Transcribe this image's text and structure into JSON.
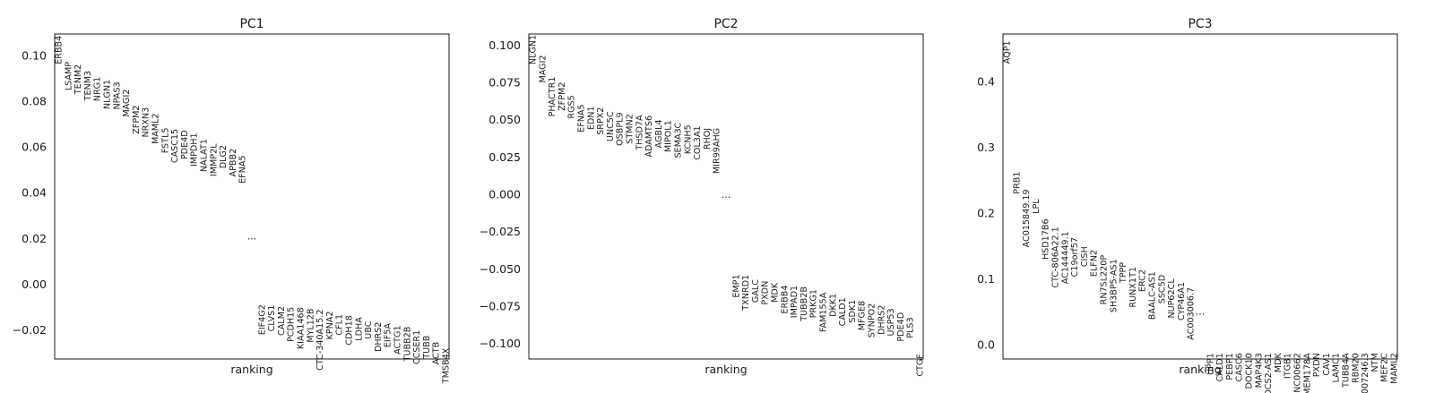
{
  "chart_data": [
    {
      "type": "scatter",
      "title": "PC1",
      "xlabel": "ranking",
      "ylabel": "",
      "ylim": [
        -0.0327,
        0.1093
      ],
      "yticks": [
        0.1,
        0.08,
        0.06,
        0.04,
        0.02,
        0.0,
        -0.02
      ],
      "ytick_labels": [
        "0.10",
        "0.08",
        "0.06",
        "0.04",
        "0.02",
        "0.00",
        "−0.02"
      ],
      "ellipsis": "...",
      "ellipsis_y": 0.0195,
      "top_genes": [
        {
          "name": "ERBB4",
          "value": 0.1086
        },
        {
          "name": "LSAMP",
          "value": 0.0972
        },
        {
          "name": "TENM2",
          "value": 0.0961
        },
        {
          "name": "TENM3",
          "value": 0.0933
        },
        {
          "name": "NRG1",
          "value": 0.0906
        },
        {
          "name": "NLGN1",
          "value": 0.0894
        },
        {
          "name": "NPAS3",
          "value": 0.0884
        },
        {
          "name": "MAGI2",
          "value": 0.0852
        },
        {
          "name": "ZFPM2",
          "value": 0.0782
        },
        {
          "name": "NRXN3",
          "value": 0.0773
        },
        {
          "name": "MAML2",
          "value": 0.0747
        },
        {
          "name": "FSTL5",
          "value": 0.0684
        },
        {
          "name": "CASC15",
          "value": 0.0679
        },
        {
          "name": "PDE4D",
          "value": 0.0673
        },
        {
          "name": "IMPDH1",
          "value": 0.0661
        },
        {
          "name": "NALAT1",
          "value": 0.0635
        },
        {
          "name": "IMMP2L",
          "value": 0.0614
        },
        {
          "name": "DLG2",
          "value": 0.0608
        },
        {
          "name": "APBB2",
          "value": 0.0593
        },
        {
          "name": "EFNA5",
          "value": 0.0563
        }
      ],
      "bottom_genes": [
        {
          "name": "EIF4G2",
          "value": -0.0089
        },
        {
          "name": "CLVS1",
          "value": -0.0091
        },
        {
          "name": "CALM2",
          "value": -0.0096
        },
        {
          "name": "PCDH15",
          "value": -0.0099
        },
        {
          "name": "KIAA1468",
          "value": -0.0101
        },
        {
          "name": "MYL12B",
          "value": -0.0106
        },
        {
          "name": "CTC-340A15.2",
          "value": -0.011
        },
        {
          "name": "KPNA2",
          "value": -0.0118
        },
        {
          "name": "CFL1",
          "value": -0.0131
        },
        {
          "name": "CDH18",
          "value": -0.0136
        },
        {
          "name": "LDHA",
          "value": -0.0144
        },
        {
          "name": "UBC",
          "value": -0.0161
        },
        {
          "name": "DHRS2",
          "value": -0.0165
        },
        {
          "name": "EIF5A",
          "value": -0.0171
        },
        {
          "name": "ACTG1",
          "value": -0.018
        },
        {
          "name": "TUBB2B",
          "value": -0.0185
        },
        {
          "name": "CCSER1",
          "value": -0.0201
        },
        {
          "name": "TUBB",
          "value": -0.0224
        },
        {
          "name": "ACTB",
          "value": -0.0252
        },
        {
          "name": "TMSB4X",
          "value": -0.0279
        }
      ]
    },
    {
      "type": "scatter",
      "title": "PC2",
      "xlabel": "ranking",
      "ylabel": "",
      "ylim": [
        -0.1105,
        0.1075
      ],
      "yticks": [
        0.1,
        0.075,
        0.05,
        0.025,
        0.0,
        -0.025,
        -0.05,
        -0.075,
        -0.1
      ],
      "ytick_labels": [
        "0.100",
        "0.075",
        "0.050",
        "0.025",
        "0.000",
        "−0.025",
        "−0.050",
        "−0.075",
        "−0.100"
      ],
      "ellipsis": "...",
      "ellipsis_y": -0.0025,
      "top_genes": [
        {
          "name": "NLGN1",
          "value": 0.107
        },
        {
          "name": "MAGI2",
          "value": 0.0934
        },
        {
          "name": "PHACTR1",
          "value": 0.0789
        },
        {
          "name": "ZFPM2",
          "value": 0.0753
        },
        {
          "name": "RGS5",
          "value": 0.0665
        },
        {
          "name": "EFNA5",
          "value": 0.0604
        },
        {
          "name": "EDN1",
          "value": 0.0592
        },
        {
          "name": "SRPX2",
          "value": 0.0585
        },
        {
          "name": "UNC5C",
          "value": 0.0556
        },
        {
          "name": "OSBPL9",
          "value": 0.055
        },
        {
          "name": "STMN2",
          "value": 0.0539
        },
        {
          "name": "THSD7A",
          "value": 0.0532
        },
        {
          "name": "ADAMTS6",
          "value": 0.0529
        },
        {
          "name": "AGBL4",
          "value": 0.0501
        },
        {
          "name": "MIPOL1",
          "value": 0.0497
        },
        {
          "name": "SEMA3C",
          "value": 0.0482
        },
        {
          "name": "KCNH5",
          "value": 0.0467
        },
        {
          "name": "COL3A1",
          "value": 0.046
        },
        {
          "name": "RHOJ",
          "value": 0.0445
        },
        {
          "name": "MIR99AHG",
          "value": 0.0445
        }
      ],
      "bottom_genes": [
        {
          "name": "EMP1",
          "value": -0.0537
        },
        {
          "name": "TXNRD1",
          "value": -0.054
        },
        {
          "name": "GALC",
          "value": -0.0571
        },
        {
          "name": "PXDN",
          "value": -0.0581
        },
        {
          "name": "MDK",
          "value": -0.0594
        },
        {
          "name": "ERBB4",
          "value": -0.061
        },
        {
          "name": "IMPAD1",
          "value": -0.0612
        },
        {
          "name": "TUBB2B",
          "value": -0.0619
        },
        {
          "name": "PRKG1",
          "value": -0.0637
        },
        {
          "name": "FAM155A",
          "value": -0.0659
        },
        {
          "name": "DKK1",
          "value": -0.0666
        },
        {
          "name": "CALD1",
          "value": -0.0692
        },
        {
          "name": "SDK1",
          "value": -0.0707
        },
        {
          "name": "MFGE8",
          "value": -0.0714
        },
        {
          "name": "SYNPO2",
          "value": -0.0731
        },
        {
          "name": "DHRS2",
          "value": -0.0742
        },
        {
          "name": "USP53",
          "value": -0.0765
        },
        {
          "name": "PDE4D",
          "value": -0.0792
        },
        {
          "name": "PLS3",
          "value": -0.0825
        },
        {
          "name": "CTGF",
          "value": -0.107
        }
      ]
    },
    {
      "type": "scatter",
      "title": "PC3",
      "xlabel": "ranking",
      "ylabel": "",
      "ylim": [
        -0.0221,
        0.472
      ],
      "yticks": [
        0.4,
        0.3,
        0.2,
        0.1,
        0.0
      ],
      "ytick_labels": [
        "0.4",
        "0.3",
        "0.2",
        "0.1",
        "0.0"
      ],
      "ellipsis": "...",
      "ellipsis_y": 0.045,
      "top_genes": [
        {
          "name": "AQP1",
          "value": 0.462
        },
        {
          "name": "PRB1",
          "value": 0.263
        },
        {
          "name": "AC015849.19",
          "value": 0.236
        },
        {
          "name": "LPL",
          "value": 0.221
        },
        {
          "name": "HSD17B6",
          "value": 0.191
        },
        {
          "name": "CTC-806A22.1",
          "value": 0.179
        },
        {
          "name": "AC144449.1",
          "value": 0.172
        },
        {
          "name": "C19orf57",
          "value": 0.163
        },
        {
          "name": "CISH",
          "value": 0.149
        },
        {
          "name": "ELFN2",
          "value": 0.144
        },
        {
          "name": "RN7SL220P",
          "value": 0.136
        },
        {
          "name": "SH3BP5-AS1",
          "value": 0.13
        },
        {
          "name": "TPPP",
          "value": 0.125
        },
        {
          "name": "RUNX1T1",
          "value": 0.118
        },
        {
          "name": "ERC2",
          "value": 0.114
        },
        {
          "name": "BAALC-AS1",
          "value": 0.111
        },
        {
          "name": "SSC5D",
          "value": 0.106
        },
        {
          "name": "NUP62CL",
          "value": 0.1
        },
        {
          "name": "CYP46A1",
          "value": 0.095
        },
        {
          "name": "AC003006.7",
          "value": 0.087
        }
      ],
      "bottom_genes": [
        {
          "name": "UPP1",
          "value": -0.013
        },
        {
          "name": "CALD1",
          "value": -0.013
        },
        {
          "name": "PEBP1",
          "value": -0.013
        },
        {
          "name": "CASC6",
          "value": -0.013
        },
        {
          "name": "DOCK10",
          "value": -0.013
        },
        {
          "name": "MAP4K3",
          "value": -0.013
        },
        {
          "name": "SOCS2-AS1",
          "value": -0.013
        },
        {
          "name": "MDK",
          "value": -0.013
        },
        {
          "name": "ITGB1",
          "value": -0.013
        },
        {
          "name": "LINC00662",
          "value": -0.013
        },
        {
          "name": "TMEM178A",
          "value": -0.013
        },
        {
          "name": "PXDN",
          "value": -0.013
        },
        {
          "name": "CAV1",
          "value": -0.013
        },
        {
          "name": "LAMC1",
          "value": -0.013
        },
        {
          "name": "TUBB4A",
          "value": -0.013
        },
        {
          "name": "RBM20",
          "value": -0.013
        },
        {
          "name": "AC007246.3",
          "value": -0.013
        },
        {
          "name": "NTM",
          "value": -0.013
        },
        {
          "name": "MEF2C",
          "value": -0.013
        },
        {
          "name": "MAML2",
          "value": -0.013
        }
      ]
    }
  ]
}
